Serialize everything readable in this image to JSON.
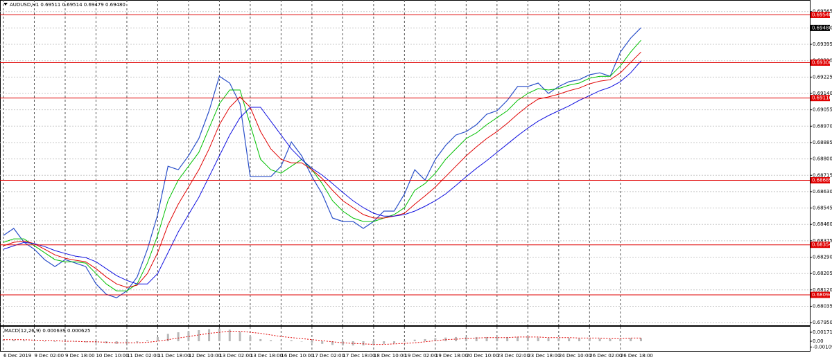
{
  "chart_data": [
    {
      "type": "line",
      "title": "AUDUSD,H1  0.69511 0.69514 0.69479 0.69480",
      "categories": [
        "6 Dec 2019",
        null,
        null,
        "9 Dec 02:00",
        null,
        null,
        "9 Dec 18:00",
        null,
        null,
        "10 Dec 10:00",
        null,
        null,
        "11 Dec 02:00",
        null,
        null,
        "11 Dec 18:00",
        null,
        null,
        "12 Dec 10:00",
        null,
        null,
        "13 Dec 02:00",
        null,
        null,
        "13 Dec 18:00",
        null,
        null,
        "16 Dec 10:00",
        null,
        null,
        "17 Dec 02:00",
        null,
        null,
        "17 Dec 18:00",
        null,
        null,
        "18 Dec 10:00",
        null,
        null,
        "19 Dec 02:00",
        null,
        null,
        "19 Dec 18:00",
        null,
        null,
        "20 Dec 10:00",
        null,
        null,
        "23 Dec 02:00",
        null,
        null,
        "23 Dec 18:00",
        null,
        null,
        "24 Dec 10:00",
        null,
        null,
        "26 Dec 02:00",
        null,
        null,
        "26 Dec 18:00",
        null,
        null
      ],
      "series": [
        {
          "color": "#2a4fc9",
          "values": [
            0.68403,
            0.68439,
            0.68367,
            0.68331,
            0.68277,
            0.68241,
            0.68277,
            0.68259,
            0.68241,
            0.68151,
            0.68097,
            0.68079,
            0.68115,
            0.68187,
            0.68331,
            0.68511,
            0.68762,
            0.68744,
            0.68816,
            0.68906,
            0.6905,
            0.69229,
            0.69194,
            0.69086,
            0.68708,
            0.68708,
            0.68708,
            0.68762,
            0.68888,
            0.68816,
            0.68708,
            0.68618,
            0.68493,
            0.68475,
            0.68475,
            0.68439,
            0.68475,
            0.68529,
            0.68529,
            0.68618,
            0.68744,
            0.6869,
            0.68798,
            0.6887,
            0.68924,
            0.68942,
            0.68978,
            0.69032,
            0.6905,
            0.69104,
            0.69176,
            0.69176,
            0.69194,
            0.6914,
            0.69176,
            0.69201,
            0.69211,
            0.69237,
            0.69247,
            0.69229,
            0.69355,
            0.69427,
            0.69481
          ]
        },
        {
          "color": "#00c000",
          "values": [
            0.68367,
            0.68385,
            0.68385,
            0.68349,
            0.68313,
            0.68277,
            0.68266,
            0.68266,
            0.68259,
            0.68205,
            0.68151,
            0.68115,
            0.68115,
            0.68151,
            0.68259,
            0.68403,
            0.68583,
            0.6869,
            0.68762,
            0.68834,
            0.6896,
            0.69086,
            0.69158,
            0.69158,
            0.68978,
            0.68798,
            0.68744,
            0.68726,
            0.68762,
            0.68798,
            0.68744,
            0.68672,
            0.68583,
            0.68529,
            0.68493,
            0.68475,
            0.68475,
            0.68493,
            0.68511,
            0.68547,
            0.68637,
            0.68672,
            0.68726,
            0.68798,
            0.68852,
            0.68906,
            0.68935,
            0.68978,
            0.69014,
            0.6905,
            0.69104,
            0.6914,
            0.69165,
            0.69158,
            0.69165,
            0.69183,
            0.69194,
            0.69219,
            0.69229,
            0.69229,
            0.69283,
            0.69355,
            0.69416
          ]
        },
        {
          "color": "#e00000",
          "values": [
            0.68349,
            0.68367,
            0.68374,
            0.6836,
            0.68331,
            0.68302,
            0.68284,
            0.68274,
            0.68266,
            0.6823,
            0.68187,
            0.68151,
            0.68133,
            0.68144,
            0.68205,
            0.68313,
            0.68457,
            0.68565,
            0.68654,
            0.68744,
            0.68852,
            0.68978,
            0.69068,
            0.69122,
            0.69068,
            0.68942,
            0.68852,
            0.68798,
            0.6878,
            0.6878,
            0.68744,
            0.68698,
            0.68637,
            0.68583,
            0.68547,
            0.68511,
            0.68493,
            0.68493,
            0.68503,
            0.68518,
            0.68565,
            0.68608,
            0.68654,
            0.68708,
            0.68762,
            0.68816,
            0.68863,
            0.68906,
            0.68942,
            0.68985,
            0.69032,
            0.69075,
            0.69111,
            0.69122,
            0.69136,
            0.69154,
            0.69168,
            0.6919,
            0.69204,
            0.69211,
            0.69247,
            0.69301,
            0.69355
          ]
        },
        {
          "color": "#1010e0",
          "values": [
            0.68331,
            0.68349,
            0.68367,
            0.6836,
            0.68345,
            0.68324,
            0.68309,
            0.68295,
            0.68288,
            0.68266,
            0.6823,
            0.68194,
            0.68169,
            0.68151,
            0.68151,
            0.68205,
            0.68313,
            0.68421,
            0.68511,
            0.68601,
            0.68708,
            0.68816,
            0.68924,
            0.69014,
            0.69068,
            0.69068,
            0.68996,
            0.68924,
            0.68852,
            0.68798,
            0.68751,
            0.68716,
            0.68672,
            0.68626,
            0.68583,
            0.68547,
            0.68518,
            0.68503,
            0.68503,
            0.68511,
            0.68529,
            0.68554,
            0.68583,
            0.68618,
            0.68662,
            0.68708,
            0.68751,
            0.68791,
            0.68834,
            0.68877,
            0.6892,
            0.6896,
            0.68996,
            0.69025,
            0.6905,
            0.69075,
            0.69104,
            0.69129,
            0.69154,
            0.69172,
            0.69201,
            0.69247,
            0.69309
          ]
        }
      ],
      "ylim": [
        0.67936,
        0.69618
      ],
      "yticks": [
        {
          "value": 0.6795,
          "label": "0.67950"
        },
        0.68035,
        {
          "value": 0.6812,
          "label": "0.68120"
        },
        0.68205,
        {
          "value": 0.6829,
          "label": "0.68290"
        },
        0.68375,
        {
          "value": 0.6846,
          "label": "0.68460"
        },
        0.68545,
        {
          "value": 0.6863,
          "label": "0.68630"
        },
        0.68715,
        {
          "value": 0.688,
          "label": "0.68800"
        },
        0.68885,
        {
          "value": 0.6897,
          "label": "0.68970"
        },
        0.69055,
        {
          "value": 0.6914,
          "label": "0.69140"
        },
        0.69225,
        {
          "value": 0.6931,
          "label": "0.69310"
        },
        0.69395,
        {
          "value": 0.6948,
          "label": "0.69480"
        },
        0.69565
      ],
      "levels": [
        {
          "value": 0.69548,
          "label": "0.69548"
        },
        {
          "value": 0.693,
          "label": "0.69300"
        },
        {
          "value": 0.69116,
          "label": "0.69116"
        },
        {
          "value": 0.68689,
          "label": "0.68689"
        },
        {
          "value": 0.68354,
          "label": "0.68354"
        },
        {
          "value": 0.68094,
          "label": "0.68094"
        }
      ],
      "level_color": "#e00000",
      "current_price": {
        "value": 0.6948,
        "label": "0.69480"
      },
      "grid": true
    },
    {
      "type": "macd",
      "title": "MACD(12,26,9) 0.000639 0.000625",
      "series": [
        {
          "color": "#b8b8b8",
          "values": [
            0.0003,
            0.0003,
            0.0002,
            0.0001,
            0.0,
            -0.0001,
            -0.0001,
            -0.0001,
            -0.0002,
            -0.0003,
            -0.0004,
            -0.0005,
            -0.0004,
            -0.0002,
            0.0002,
            0.0008,
            0.0014,
            0.0017,
            0.0019,
            0.0021,
            0.0023,
            0.0024,
            0.0022,
            0.0018,
            0.0009,
            0.0004,
            0.0002,
            0.0001,
            0.0002,
            0.0,
            -0.0003,
            -0.0005,
            -0.0007,
            -0.0008,
            -0.0008,
            -0.0008,
            -0.0007,
            -0.0005,
            -0.0004,
            -0.0001,
            0.0003,
            0.0004,
            0.0006,
            0.0007,
            0.0008,
            0.0008,
            0.0008,
            0.0008,
            0.0008,
            0.0008,
            0.0008,
            0.0008,
            0.0007,
            0.0006,
            0.0006,
            0.0006,
            0.0005,
            0.0005,
            0.0005,
            0.0004,
            0.0005,
            0.0006,
            0.0006
          ]
        },
        {
          "color": "#e00000",
          "values": [
            0.0003,
            0.0003,
            0.0003,
            0.0002,
            0.0002,
            0.0001,
            0.0,
            0.0,
            -0.0001,
            -0.0001,
            -0.0002,
            -0.0003,
            -0.0003,
            -0.0003,
            -0.0002,
            0.0,
            0.0003,
            0.0006,
            0.0009,
            0.0012,
            0.0015,
            0.0017,
            0.0019,
            0.0019,
            0.0017,
            0.0015,
            0.0012,
            0.0009,
            0.0007,
            0.0005,
            0.0003,
            0.0001,
            -0.0001,
            -0.0003,
            -0.0004,
            -0.0005,
            -0.0006,
            -0.0006,
            -0.0005,
            -0.0004,
            -0.0003,
            -0.0001,
            0.0001,
            0.0003,
            0.0004,
            0.0005,
            0.0006,
            0.0007,
            0.0007,
            0.0007,
            0.0008,
            0.0008,
            0.0008,
            0.0007,
            0.0007,
            0.0007,
            0.0006,
            0.0006,
            0.0006,
            0.0005,
            0.0005,
            0.0006,
            0.0006
          ]
        }
      ],
      "ylim": [
        -0.00197,
        0.00276
      ],
      "yticks": [
        0.001711,
        {
          "value": 0,
          "label": "0.00"
        },
        -0.001093
      ]
    }
  ]
}
